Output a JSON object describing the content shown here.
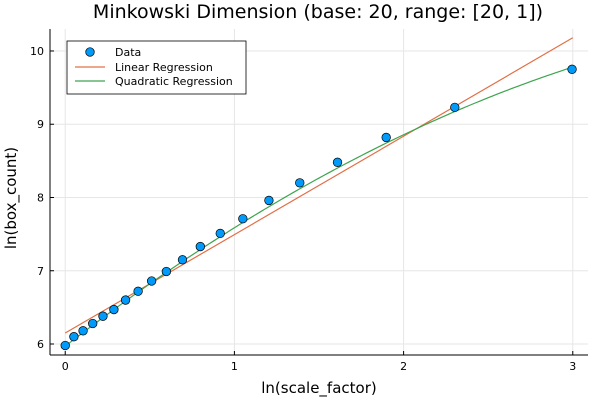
{
  "chart_data": {
    "type": "scatter",
    "title": "Minkowski Dimension (base: 20, range: [20, 1])",
    "xlabel": "ln(scale_factor)",
    "ylabel": "ln(box_count)",
    "xlim": [
      -0.09,
      3.09
    ],
    "ylim": [
      5.85,
      10.3
    ],
    "xticks": [
      0,
      1,
      2,
      3
    ],
    "yticks": [
      6,
      7,
      8,
      9,
      10
    ],
    "grid": true,
    "legend_position": "top-left",
    "series": [
      {
        "name": "Data",
        "kind": "scatter",
        "color": "#009AFA",
        "x": [
          0.0,
          0.0513,
          0.1054,
          0.1625,
          0.2231,
          0.2877,
          0.3567,
          0.4308,
          0.5108,
          0.5978,
          0.6931,
          0.7985,
          0.9163,
          1.0498,
          1.204,
          1.3863,
          1.6094,
          1.8971,
          2.3026,
          2.9957
        ],
        "y": [
          5.98,
          6.1,
          6.18,
          6.28,
          6.38,
          6.47,
          6.6,
          6.72,
          6.86,
          6.99,
          7.15,
          7.33,
          7.51,
          7.71,
          7.96,
          8.2,
          8.48,
          8.82,
          9.23,
          9.75
        ]
      },
      {
        "name": "Linear Regression",
        "kind": "line",
        "color": "#E26F46",
        "x": [
          0,
          3
        ],
        "y": [
          6.15,
          10.18
        ]
      },
      {
        "name": "Quadratic Regression",
        "kind": "curve",
        "color": "#3DA44D",
        "coefficients": {
          "a": -0.1733,
          "b": 1.79,
          "c": 5.97
        },
        "x_range": [
          0,
          3
        ]
      }
    ]
  }
}
